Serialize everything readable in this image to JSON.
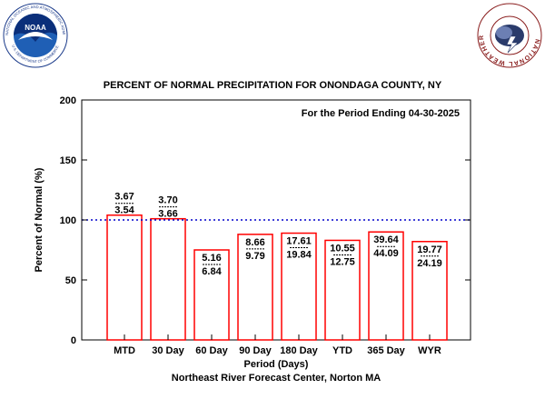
{
  "logos": {
    "noaa_text": "NOAA",
    "noaa_ring_text": "NATIONAL OCEANIC AND ATMOSPHERIC ADMINISTRATION",
    "noaa_ring_bottom": "U.S. DEPARTMENT OF COMMERCE",
    "nws_ring_text": "NATIONAL WEATHER SERVICE"
  },
  "chart_data": {
    "type": "bar",
    "title": "PERCENT OF NORMAL PRECIPITATION FOR ONONDAGA COUNTY, NY",
    "subtitle": "For the Period Ending 04-30-2025",
    "xlabel": "Period (Days)",
    "credit": "Northeast River Forecast Center, Norton MA",
    "ylabel": "Percent of Normal (%)",
    "ylim": [
      0,
      200
    ],
    "yticks": [
      0,
      50,
      100,
      150,
      200
    ],
    "reference_line": 100,
    "categories": [
      "MTD",
      "30 Day",
      "60 Day",
      "90 Day",
      "180 Day",
      "YTD",
      "365 Day",
      "WYR"
    ],
    "values": [
      104,
      101,
      75,
      88,
      89,
      83,
      90,
      82
    ],
    "observed": [
      "3.67",
      "3.70",
      "5.16",
      "8.66",
      "17.61",
      "10.55",
      "39.64",
      "19.77"
    ],
    "normal": [
      "3.54",
      "3.66",
      "6.84",
      "9.79",
      "19.84",
      "12.75",
      "44.09",
      "24.19"
    ],
    "grid": false,
    "colors": {
      "bar_edge": "#ff0000",
      "reference": "#0000cc",
      "axis": "#000000"
    }
  }
}
